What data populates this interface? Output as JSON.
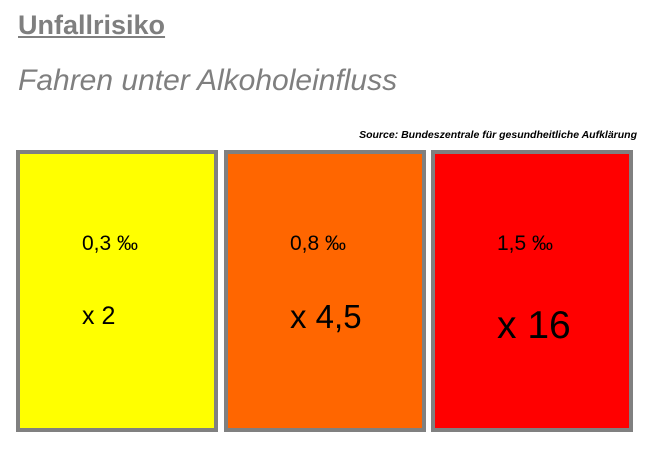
{
  "header": {
    "title": "Unfallrisiko",
    "subtitle": "Fahren unter Alkoholeinfluss"
  },
  "source": "Source: Bundeszentrale für gesundheitliche Aufklärung",
  "cards": [
    {
      "level": "0,3 ‰",
      "factor": "x 2"
    },
    {
      "level": "0,8 ‰",
      "factor": "x 4,5"
    },
    {
      "level": "1,5 ‰",
      "factor": "x 16"
    }
  ]
}
